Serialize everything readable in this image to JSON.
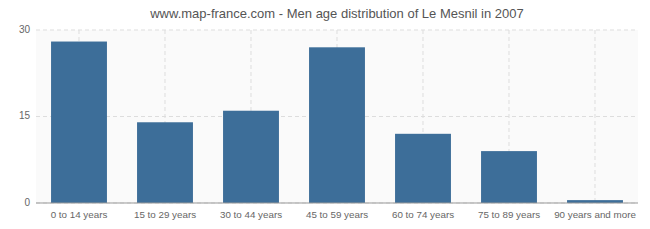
{
  "chart_data": {
    "type": "bar",
    "title": "www.map-france.com - Men age distribution of Le Mesnil in 2007",
    "categories": [
      "0 to 14 years",
      "15 to 29 years",
      "30 to 44 years",
      "45 to 59 years",
      "60 to 74 years",
      "75 to 89 years",
      "90 years and more"
    ],
    "values": [
      28.0,
      14.0,
      16.0,
      27.0,
      12.0,
      9.0,
      0.5
    ],
    "color": "#3d6e99",
    "ylim": [
      0,
      30
    ],
    "yticks": [
      0,
      15,
      30
    ],
    "grid": true
  }
}
